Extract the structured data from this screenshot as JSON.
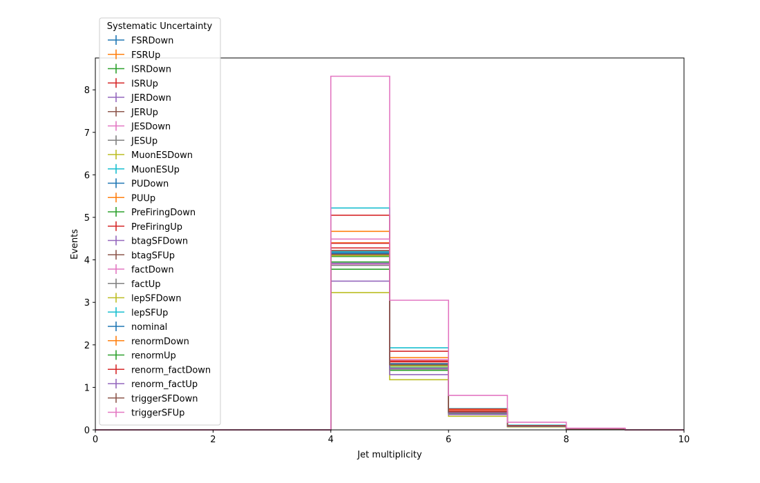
{
  "chart_data": {
    "type": "step",
    "xlabel": "Jet multiplicity",
    "ylabel": "Events",
    "xlim": [
      0,
      10
    ],
    "ylim": [
      0,
      8.75
    ],
    "x_ticks": [
      "0",
      "2",
      "4",
      "6",
      "8",
      "10"
    ],
    "y_ticks": [
      "0",
      "1",
      "2",
      "3",
      "4",
      "5",
      "6",
      "7",
      "8"
    ],
    "grid": false,
    "legend": {
      "title": "Systematic Uncertainty",
      "placement": "top-left"
    },
    "bin_edges": [
      0,
      1,
      2,
      3,
      4,
      5,
      6,
      7,
      8,
      9,
      10
    ],
    "series": [
      {
        "name": "FSRDown",
        "color": "#1f77b4",
        "values": [
          0,
          0,
          0,
          0,
          4.15,
          1.55,
          0.42,
          0.09,
          0.02,
          0
        ]
      },
      {
        "name": "FSRUp",
        "color": "#ff7f0e",
        "values": [
          0,
          0,
          0,
          0,
          4.67,
          1.7,
          0.47,
          0.1,
          0.02,
          0
        ]
      },
      {
        "name": "ISRDown",
        "color": "#2ca02c",
        "values": [
          0,
          0,
          0,
          0,
          3.78,
          1.4,
          0.38,
          0.08,
          0.02,
          0
        ]
      },
      {
        "name": "ISRUp",
        "color": "#d62728",
        "values": [
          0,
          0,
          0,
          0,
          4.28,
          1.6,
          0.44,
          0.09,
          0.02,
          0
        ]
      },
      {
        "name": "JERDown",
        "color": "#9467bd",
        "values": [
          0,
          0,
          0,
          0,
          4.18,
          1.53,
          0.42,
          0.09,
          0.02,
          0
        ]
      },
      {
        "name": "JERUp",
        "color": "#8c564b",
        "values": [
          0,
          0,
          0,
          0,
          4.2,
          1.55,
          0.42,
          0.09,
          0.02,
          0
        ]
      },
      {
        "name": "JESDown",
        "color": "#e377c2",
        "values": [
          0,
          0,
          0,
          0,
          3.9,
          1.45,
          0.4,
          0.09,
          0.02,
          0
        ]
      },
      {
        "name": "JESUp",
        "color": "#7f7f7f",
        "values": [
          0,
          0,
          0,
          0,
          4.12,
          1.52,
          0.41,
          0.09,
          0.02,
          0
        ]
      },
      {
        "name": "MuonESDown",
        "color": "#bcbd22",
        "values": [
          0,
          0,
          0,
          0,
          3.23,
          1.18,
          0.32,
          0.07,
          0.01,
          0
        ]
      },
      {
        "name": "MuonESUp",
        "color": "#17becf",
        "values": [
          0,
          0,
          0,
          0,
          5.22,
          1.93,
          0.5,
          0.11,
          0.02,
          0
        ]
      },
      {
        "name": "PUDown",
        "color": "#1f77b4",
        "values": [
          0,
          0,
          0,
          0,
          4.16,
          1.55,
          0.42,
          0.09,
          0.02,
          0
        ]
      },
      {
        "name": "PUUp",
        "color": "#ff7f0e",
        "values": [
          0,
          0,
          0,
          0,
          4.14,
          1.54,
          0.42,
          0.09,
          0.02,
          0
        ]
      },
      {
        "name": "PreFiringDown",
        "color": "#2ca02c",
        "values": [
          0,
          0,
          0,
          0,
          4.08,
          1.5,
          0.41,
          0.09,
          0.02,
          0
        ]
      },
      {
        "name": "PreFiringUp",
        "color": "#d62728",
        "values": [
          0,
          0,
          0,
          0,
          5.05,
          1.85,
          0.49,
          0.1,
          0.02,
          0
        ]
      },
      {
        "name": "btagSFDown",
        "color": "#9467bd",
        "values": [
          0,
          0,
          0,
          0,
          3.5,
          1.3,
          0.36,
          0.08,
          0.02,
          0
        ]
      },
      {
        "name": "btagSFUp",
        "color": "#8c564b",
        "values": [
          0,
          0,
          0,
          0,
          4.22,
          1.56,
          0.43,
          0.09,
          0.02,
          0
        ]
      },
      {
        "name": "factDown",
        "color": "#e377c2",
        "values": [
          0,
          0,
          0,
          0,
          4.49,
          1.65,
          0.45,
          0.1,
          0.02,
          0
        ]
      },
      {
        "name": "factUp",
        "color": "#7f7f7f",
        "values": [
          0,
          0,
          0,
          0,
          3.87,
          1.43,
          0.39,
          0.09,
          0.02,
          0
        ]
      },
      {
        "name": "lepSFDown",
        "color": "#bcbd22",
        "values": [
          0,
          0,
          0,
          0,
          4.1,
          1.51,
          0.41,
          0.09,
          0.02,
          0
        ]
      },
      {
        "name": "lepSFUp",
        "color": "#17becf",
        "values": [
          0,
          0,
          0,
          0,
          4.19,
          1.55,
          0.42,
          0.09,
          0.02,
          0
        ]
      },
      {
        "name": "nominal",
        "color": "#1f77b4",
        "values": [
          0,
          0,
          0,
          0,
          4.15,
          1.55,
          0.42,
          0.09,
          0.02,
          0
        ]
      },
      {
        "name": "renormDown",
        "color": "#ff7f0e",
        "values": [
          0,
          0,
          0,
          0,
          4.4,
          1.62,
          0.44,
          0.1,
          0.02,
          0
        ]
      },
      {
        "name": "renormUp",
        "color": "#2ca02c",
        "values": [
          0,
          0,
          0,
          0,
          3.95,
          1.46,
          0.4,
          0.09,
          0.02,
          0
        ]
      },
      {
        "name": "renorm_factDown",
        "color": "#d62728",
        "values": [
          0,
          0,
          0,
          0,
          4.39,
          1.62,
          0.44,
          0.1,
          0.02,
          0
        ]
      },
      {
        "name": "renorm_factUp",
        "color": "#9467bd",
        "values": [
          0,
          0,
          0,
          0,
          3.92,
          1.45,
          0.4,
          0.09,
          0.02,
          0
        ]
      },
      {
        "name": "triggerSFDown",
        "color": "#8c564b",
        "values": [
          0,
          0,
          0,
          0,
          4.13,
          1.53,
          0.42,
          0.09,
          0.02,
          0
        ]
      },
      {
        "name": "triggerSFUp",
        "color": "#e377c2",
        "values": [
          0,
          0,
          0,
          0,
          8.32,
          3.05,
          0.81,
          0.18,
          0.04,
          0
        ]
      }
    ]
  }
}
